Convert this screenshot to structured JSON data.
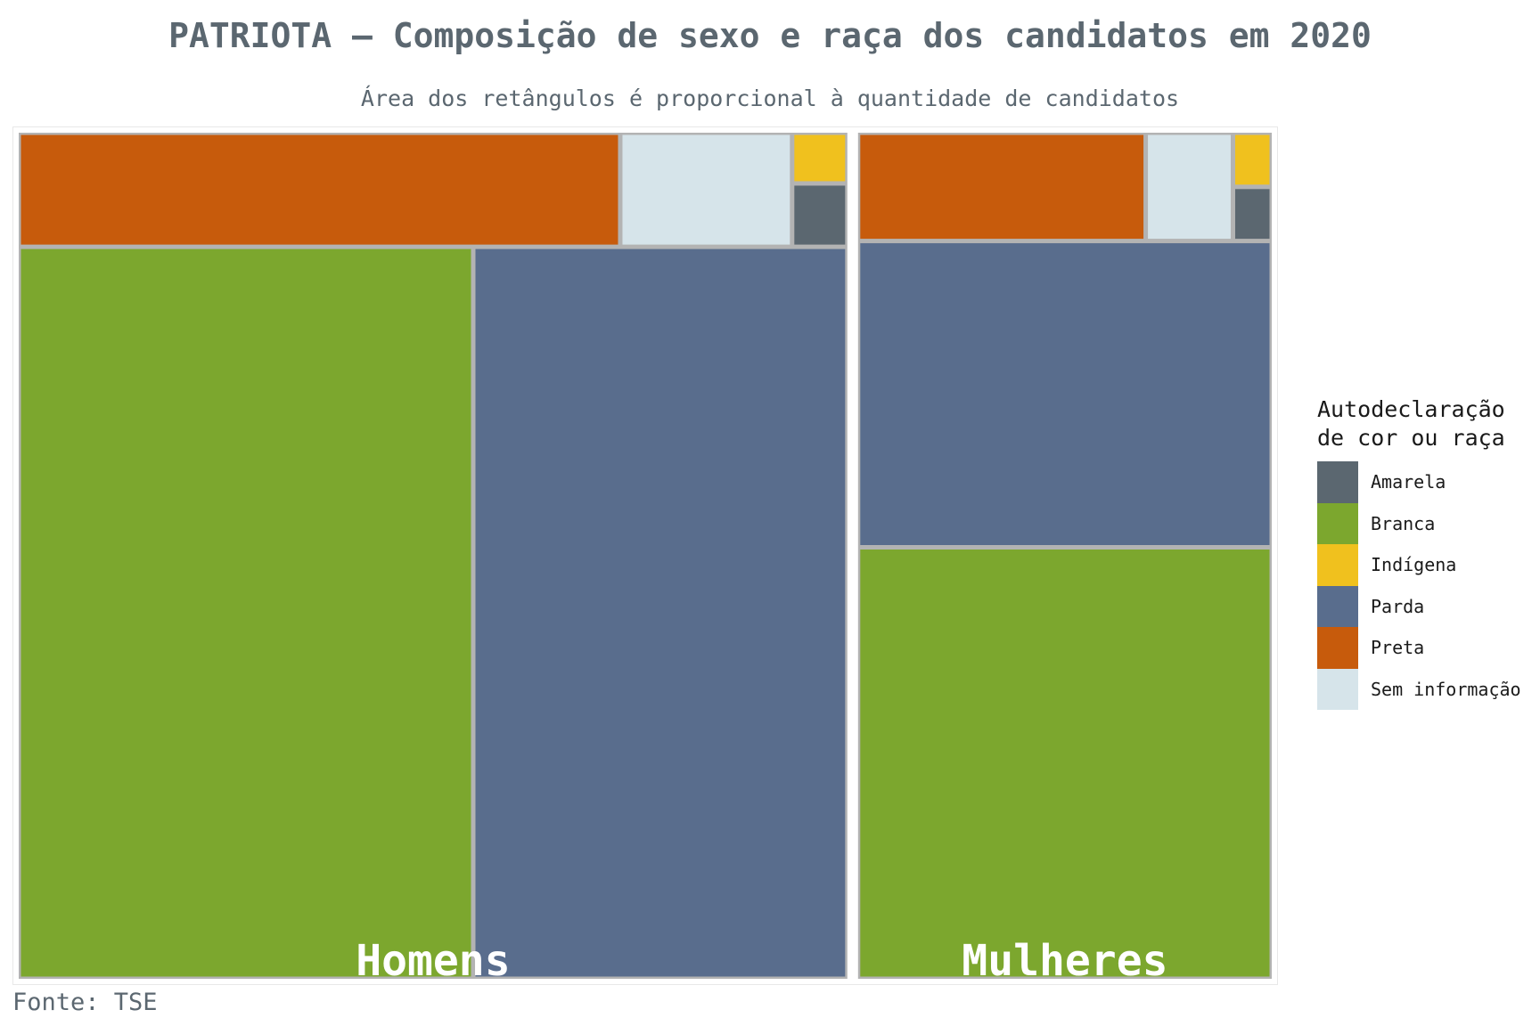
{
  "title": "PATRIOTA – Composição de sexo e raça dos candidatos em 2020",
  "subtitle": "Área dos retângulos é proporcional à quantidade de candidatos",
  "caption": "Fonte: TSE",
  "legend": {
    "title": "Autodeclaração\nde cor ou raça",
    "items": [
      {
        "label": "Amarela",
        "color": "#5b6770"
      },
      {
        "label": "Branca",
        "color": "#7ca72e"
      },
      {
        "label": "Indígena",
        "color": "#f0c11e"
      },
      {
        "label": "Parda",
        "color": "#596d8d"
      },
      {
        "label": "Preta",
        "color": "#c75b0c"
      },
      {
        "label": "Sem informação",
        "color": "#d6e4ea"
      }
    ]
  },
  "chart_data": {
    "type": "treemap",
    "title": "PATRIOTA – Composição de sexo e raça dos candidatos em 2020",
    "subtitle": "Área dos retângulos é proporcional à quantidade de candidatos",
    "groups": [
      {
        "name": "Homens",
        "share_of_total": 0.667,
        "children": [
          {
            "category": "Branca",
            "share": 0.475
          },
          {
            "category": "Parda",
            "share": 0.391
          },
          {
            "category": "Preta",
            "share": 0.098
          },
          {
            "category": "Sem informação",
            "share": 0.028
          },
          {
            "category": "Amarela",
            "share": 0.005
          },
          {
            "category": "Indígena",
            "share": 0.004
          }
        ]
      },
      {
        "name": "Mulheres",
        "share_of_total": 0.333,
        "children": [
          {
            "category": "Branca",
            "share": 0.51
          },
          {
            "category": "Parda",
            "share": 0.362
          },
          {
            "category": "Preta",
            "share": 0.089
          },
          {
            "category": "Sem informação",
            "share": 0.027
          },
          {
            "category": "Amarela",
            "share": 0.006
          },
          {
            "category": "Indígena",
            "share": 0.006
          }
        ]
      }
    ]
  }
}
